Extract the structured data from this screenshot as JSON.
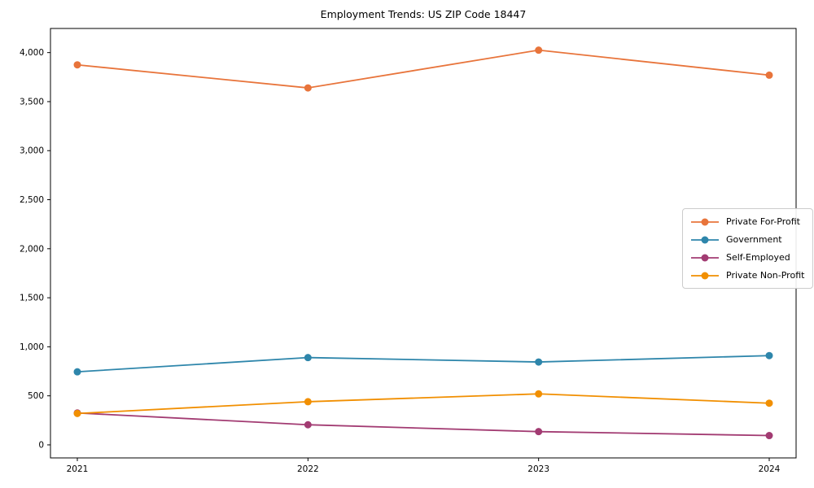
{
  "title": "Employment Trends: US ZIP Code 18447",
  "chart_data": {
    "type": "line",
    "title": "Employment Trends: US ZIP Code 18447",
    "xlabel": "",
    "ylabel": "",
    "x": [
      2021,
      2022,
      2023,
      2024
    ],
    "x_tick_labels": [
      "2021",
      "2022",
      "2023",
      "2024"
    ],
    "yticks": [
      0,
      500,
      1000,
      1500,
      2000,
      2500,
      3000,
      3500,
      4000
    ],
    "ylim": [
      -133,
      4246
    ],
    "grid": false,
    "marker": "circle",
    "legend_position": "center-right",
    "series": [
      {
        "name": "Private For-Profit",
        "color": "#E8743B",
        "values": [
          3875,
          3640,
          4025,
          3770
        ]
      },
      {
        "name": "Government",
        "color": "#2E86AB",
        "values": [
          745,
          890,
          845,
          910
        ]
      },
      {
        "name": "Self-Employed",
        "color": "#A23B72",
        "values": [
          325,
          205,
          135,
          95
        ]
      },
      {
        "name": "Private Non-Profit",
        "color": "#F18F01",
        "values": [
          320,
          440,
          520,
          425
        ]
      }
    ]
  }
}
